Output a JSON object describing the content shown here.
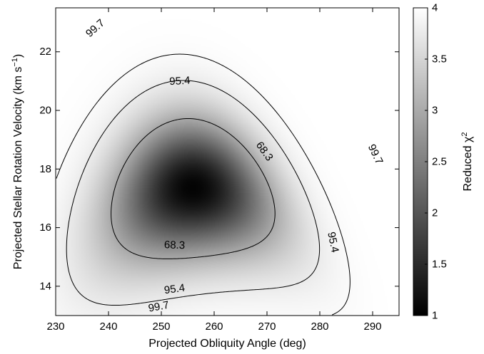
{
  "chart_data": {
    "type": "heatmap",
    "title": "",
    "xlabel": "Projected Obliquity Angle (deg)",
    "ylabel": "Projected Stellar Rotation Velocity (km s",
    "ylabel_sup": "−1",
    "ylabel_end": ")",
    "xlim": [
      230,
      295
    ],
    "ylim": [
      13,
      23.5
    ],
    "x_ticks": [
      230,
      240,
      250,
      260,
      270,
      280,
      290
    ],
    "y_ticks": [
      14,
      16,
      18,
      20,
      22
    ],
    "colorbar": {
      "label": "Reduced χ",
      "label_sup": "2",
      "range": [
        1,
        4
      ],
      "ticks": [
        1,
        1.5,
        2,
        2.5,
        3,
        3.5,
        4
      ],
      "colormap": "gray"
    },
    "minimum": {
      "x": 256,
      "y": 17.2,
      "value": 1.05
    },
    "contours": [
      {
        "level": "68.3",
        "labels": [
          {
            "x": 269.5,
            "y": 18.6
          },
          {
            "x": 252.5,
            "y": 15.4
          }
        ]
      },
      {
        "level": "95.4",
        "labels": [
          {
            "x": 253.5,
            "y": 21.0
          },
          {
            "x": 282.5,
            "y": 15.5
          },
          {
            "x": 252.5,
            "y": 13.9
          }
        ]
      },
      {
        "level": "99.7",
        "labels": [
          {
            "x": 237.5,
            "y": 22.8
          },
          {
            "x": 290.5,
            "y": 18.5
          },
          {
            "x": 249.5,
            "y": 13.3
          }
        ]
      }
    ],
    "grid": false
  }
}
